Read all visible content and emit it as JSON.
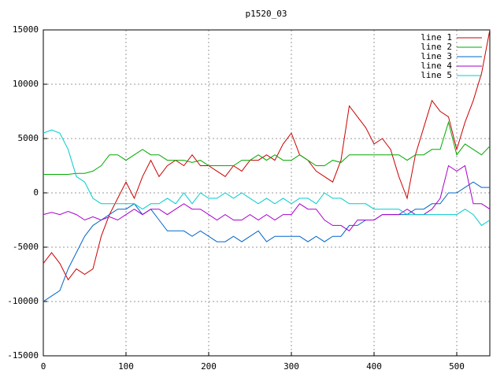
{
  "chart_data": {
    "type": "line",
    "title": "p1520_03",
    "x": [
      0,
      10,
      20,
      30,
      40,
      50,
      60,
      70,
      80,
      90,
      100,
      110,
      120,
      130,
      140,
      150,
      160,
      170,
      180,
      190,
      200,
      210,
      220,
      230,
      240,
      250,
      260,
      270,
      280,
      290,
      300,
      310,
      320,
      330,
      340,
      350,
      360,
      370,
      380,
      390,
      400,
      410,
      420,
      430,
      440,
      450,
      460,
      470,
      480,
      490,
      500,
      510,
      520,
      530,
      540
    ],
    "series": [
      {
        "name": "line 1",
        "color": "#cc0000",
        "values": [
          -6500,
          -5500,
          -6500,
          -8000,
          -7000,
          -7500,
          -7000,
          -4000,
          -2000,
          -500,
          1000,
          -500,
          1500,
          3000,
          1500,
          2500,
          3000,
          2500,
          3500,
          2500,
          2500,
          2000,
          1500,
          2500,
          2000,
          3000,
          3000,
          3500,
          3000,
          4500,
          5500,
          3500,
          3000,
          2000,
          1500,
          1000,
          3000,
          8000,
          7000,
          6000,
          4500,
          5000,
          4000,
          1500,
          -500,
          3500,
          6000,
          8500,
          7500,
          7000,
          4000,
          6500,
          8500,
          11000,
          15000
        ]
      },
      {
        "name": "line 2",
        "color": "#00aa00",
        "values": [
          1700,
          1700,
          1700,
          1700,
          1800,
          1800,
          2000,
          2500,
          3500,
          3500,
          3000,
          3500,
          4000,
          3500,
          3500,
          3000,
          3000,
          3000,
          2800,
          3000,
          2500,
          2500,
          2500,
          2500,
          3000,
          3000,
          3500,
          3000,
          3500,
          3000,
          3000,
          3500,
          3000,
          2500,
          2500,
          3000,
          2800,
          3500,
          3500,
          3500,
          3500,
          3500,
          3500,
          3500,
          3000,
          3500,
          3500,
          4000,
          4000,
          6500,
          3500,
          4500,
          4000,
          3500,
          4300
        ]
      },
      {
        "name": "line 3",
        "color": "#0066cc",
        "values": [
          -10000,
          -9500,
          -9000,
          -7000,
          -5500,
          -4000,
          -3000,
          -2500,
          -2000,
          -1500,
          -1500,
          -1000,
          -2000,
          -1500,
          -2500,
          -3500,
          -3500,
          -3500,
          -4000,
          -3500,
          -4000,
          -4500,
          -4500,
          -4000,
          -4500,
          -4000,
          -3500,
          -4500,
          -4000,
          -4000,
          -4000,
          -4000,
          -4500,
          -4000,
          -4500,
          -4000,
          -4000,
          -3000,
          -3000,
          -2500,
          -2500,
          -2000,
          -2000,
          -2000,
          -2000,
          -1500,
          -1500,
          -1000,
          -1000,
          0,
          0,
          500,
          1000,
          500,
          500
        ]
      },
      {
        "name": "line 4",
        "color": "#aa00cc",
        "values": [
          -2000,
          -1800,
          -2000,
          -1700,
          -2000,
          -2500,
          -2200,
          -2500,
          -2200,
          -2500,
          -2000,
          -1500,
          -2000,
          -1500,
          -1500,
          -2000,
          -1500,
          -1000,
          -1500,
          -1500,
          -2000,
          -2500,
          -2000,
          -2500,
          -2500,
          -2000,
          -2500,
          -2000,
          -2500,
          -2000,
          -2000,
          -1000,
          -1500,
          -1500,
          -2500,
          -3000,
          -3000,
          -3500,
          -2500,
          -2500,
          -2500,
          -2000,
          -2000,
          -2000,
          -1500,
          -2000,
          -2000,
          -1500,
          -500,
          2500,
          2000,
          2500,
          -1000,
          -1000,
          -1500
        ]
      },
      {
        "name": "line 5",
        "color": "#00cccc",
        "values": [
          5500,
          5800,
          5500,
          4000,
          1500,
          1000,
          -500,
          -1000,
          -1000,
          -1000,
          -1000,
          -1000,
          -1500,
          -1000,
          -1000,
          -500,
          -1000,
          0,
          -1000,
          0,
          -500,
          -500,
          0,
          -500,
          0,
          -500,
          -1000,
          -500,
          -1000,
          -500,
          -1000,
          -500,
          -500,
          -1000,
          0,
          -500,
          -500,
          -1000,
          -1000,
          -1000,
          -1500,
          -1500,
          -1500,
          -1500,
          -2000,
          -2000,
          -2000,
          -2000,
          -2000,
          -2000,
          -2000,
          -1500,
          -2000,
          -3000,
          -2500
        ]
      }
    ],
    "xlim": [
      0,
      540
    ],
    "xticks": [
      0,
      100,
      200,
      300,
      400,
      500
    ],
    "ylim": [
      -15000,
      15000
    ],
    "yticks": [
      -15000,
      -10000,
      -5000,
      0,
      5000,
      10000,
      15000
    ],
    "grid": true,
    "legend": "top-right"
  }
}
